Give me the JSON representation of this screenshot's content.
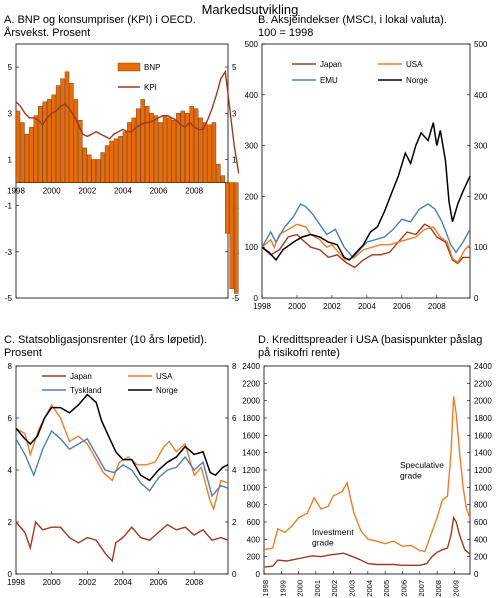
{
  "figure_title": "Markedsutvikling",
  "chart_data": [
    {
      "id": "A",
      "type": "bar",
      "title": "A. BNP og konsumpriser (KPI) i OECD.\nÅrsvekst. Prosent",
      "xlabel": "",
      "ylabel": "",
      "ylim": [
        -5,
        6
      ],
      "yticks_left": [
        "5",
        "3",
        "1",
        "-1",
        "-3",
        "-5"
      ],
      "yticks_right": [
        "5",
        "3",
        "1",
        "-1",
        "-3",
        "-5"
      ],
      "xticks": [
        "1998",
        "2000",
        "2002",
        "2004",
        "2006",
        "2008"
      ],
      "legend": [
        "BNP",
        "KPI"
      ],
      "colors": {
        "bnp": "#e46c0a",
        "kpi": "#a0391c",
        "bar_edge": "#7a2e00"
      },
      "series": [
        {
          "name": "BNP",
          "kind": "bar",
          "x_start": 1998.0,
          "step": 0.25,
          "values": [
            3.1,
            2.6,
            2.1,
            2.4,
            2.9,
            3.3,
            3.5,
            3.6,
            3.8,
            4.2,
            4.5,
            4.8,
            4.3,
            3.6,
            2.7,
            1.5,
            1.2,
            1.0,
            1.0,
            1.3,
            1.6,
            1.8,
            1.9,
            2.0,
            2.2,
            2.6,
            2.8,
            3.2,
            3.6,
            3.3,
            3.0,
            2.9,
            2.6,
            2.9,
            2.8,
            2.7,
            3.0,
            3.1,
            3.0,
            3.3,
            3.2,
            2.8,
            2.6,
            2.5,
            2.6,
            0.8,
            0.3,
            -2.2,
            -4.6,
            -4.8
          ]
        },
        {
          "name": "KPI",
          "kind": "line",
          "x_start": 1998.0,
          "step": 0.25,
          "values": [
            3.5,
            3.3,
            3.0,
            2.8,
            2.8,
            2.7,
            2.5,
            2.8,
            3.0,
            3.1,
            3.3,
            3.4,
            3.2,
            2.9,
            2.5,
            2.1,
            2.0,
            2.1,
            2.2,
            2.1,
            2.0,
            1.9,
            2.1,
            2.2,
            2.3,
            2.2,
            2.2,
            2.4,
            2.5,
            2.6,
            2.6,
            2.7,
            2.8,
            2.9,
            2.9,
            2.8,
            2.7,
            2.5,
            2.4,
            2.6,
            2.4,
            2.3,
            2.3,
            2.7,
            3.2,
            3.8,
            4.5,
            4.8,
            3.2,
            1.6,
            0.4
          ]
        }
      ]
    },
    {
      "id": "B",
      "type": "line",
      "title": "B. Aksjeindekser (MSCI, i lokal valuta).\n100 = 1998",
      "xlabel": "",
      "ylabel": "",
      "ylim": [
        0,
        500
      ],
      "yticks": [
        "0",
        "100",
        "200",
        "300",
        "400",
        "500"
      ],
      "xticks": [
        "1998",
        "2000",
        "2002",
        "2004",
        "2006",
        "2008"
      ],
      "x_range": [
        1998,
        2009.9
      ],
      "legend": [
        "Japan",
        "USA",
        "EMU",
        "Norge"
      ],
      "series": [
        {
          "name": "Japan",
          "color": "#a0391c",
          "x": [
            1998,
            1998.5,
            1999,
            1999.5,
            2000,
            2000.3,
            2000.8,
            2001.3,
            2001.8,
            2002.3,
            2002.8,
            2003.3,
            2003.8,
            2004.3,
            2004.8,
            2005.3,
            2005.8,
            2006.3,
            2006.8,
            2007.3,
            2007.6,
            2008.0,
            2008.5,
            2008.9,
            2009.2,
            2009.5,
            2009.9
          ],
          "values": [
            100,
            85,
            95,
            120,
            125,
            115,
            100,
            95,
            80,
            85,
            70,
            60,
            75,
            85,
            85,
            90,
            110,
            130,
            125,
            145,
            140,
            120,
            110,
            75,
            68,
            80,
            80
          ]
        },
        {
          "name": "USA",
          "color": "#f07c28",
          "x": [
            1998,
            1998.5,
            1998.7,
            1999,
            1999.5,
            2000,
            2000.5,
            2000.8,
            2001.3,
            2001.7,
            2002,
            2002.5,
            2002.8,
            2003.3,
            2003.8,
            2004.3,
            2004.8,
            2005.3,
            2005.8,
            2006.3,
            2006.8,
            2007.3,
            2007.8,
            2008.2,
            2008.6,
            2008.9,
            2009.2,
            2009.6,
            2009.9
          ],
          "values": [
            100,
            115,
            100,
            125,
            135,
            145,
            140,
            125,
            115,
            100,
            105,
            85,
            75,
            80,
            95,
            100,
            105,
            105,
            110,
            115,
            120,
            135,
            140,
            120,
            110,
            78,
            70,
            95,
            105
          ]
        },
        {
          "name": "EMU",
          "color": "#4a7ebb",
          "x": [
            1998,
            1998.5,
            1998.8,
            1999.3,
            1999.8,
            2000.2,
            2000.5,
            2000.9,
            2001.3,
            2001.7,
            2002.2,
            2002.7,
            2003.2,
            2003.6,
            2004,
            2004.5,
            2005,
            2005.5,
            2006,
            2006.5,
            2007,
            2007.5,
            2007.9,
            2008.3,
            2008.8,
            2009.1,
            2009.5,
            2009.9
          ],
          "values": [
            100,
            130,
            110,
            140,
            160,
            185,
            180,
            165,
            145,
            125,
            135,
            100,
            80,
            95,
            110,
            115,
            120,
            135,
            155,
            150,
            175,
            185,
            175,
            150,
            105,
            90,
            110,
            135
          ]
        },
        {
          "name": "Norge",
          "color": "#000000",
          "x": [
            1998,
            1998.4,
            1998.8,
            1999.2,
            1999.8,
            2000.3,
            2000.8,
            2001.3,
            2001.8,
            2002.3,
            2002.7,
            2003.0,
            2003.4,
            2003.8,
            2004.2,
            2004.6,
            2005,
            2005.4,
            2005.8,
            2006.2,
            2006.5,
            2006.8,
            2007.1,
            2007.5,
            2007.8,
            2008.0,
            2008.2,
            2008.5,
            2008.7,
            2008.9,
            2009.2,
            2009.5,
            2009.9
          ],
          "values": [
            100,
            90,
            75,
            95,
            110,
            120,
            125,
            120,
            110,
            105,
            80,
            75,
            90,
            105,
            130,
            140,
            170,
            205,
            240,
            285,
            265,
            300,
            325,
            310,
            345,
            300,
            330,
            270,
            190,
            150,
            185,
            210,
            240
          ]
        }
      ]
    },
    {
      "id": "C",
      "type": "line",
      "title": "C. Statsobligasjonsrenter (10 års løpetid).\nProsent",
      "xlabel": "",
      "ylabel": "",
      "ylim": [
        0,
        8
      ],
      "yticks": [
        "0",
        "2",
        "4",
        "6",
        "8"
      ],
      "xticks": [
        "1998",
        "2000",
        "2002",
        "2004",
        "2006",
        "2008"
      ],
      "x_range": [
        1998,
        2009.9
      ],
      "legend": [
        "Japan",
        "USA",
        "Tyskland",
        "Norge"
      ],
      "series": [
        {
          "name": "Japan",
          "color": "#a0391c",
          "x": [
            1998,
            1998.5,
            1998.8,
            1999.1,
            1999.5,
            2000,
            2000.5,
            2001,
            2001.5,
            2002,
            2002.5,
            2003,
            2003.4,
            2003.6,
            2004,
            2004.5,
            2005,
            2005.5,
            2006,
            2006.5,
            2007,
            2007.5,
            2008,
            2008.5,
            2009,
            2009.5,
            2009.9
          ],
          "values": [
            2.0,
            1.6,
            1.0,
            2.0,
            1.7,
            1.8,
            1.8,
            1.4,
            1.2,
            1.4,
            1.3,
            0.8,
            0.5,
            1.2,
            1.4,
            1.8,
            1.4,
            1.3,
            1.6,
            1.9,
            1.7,
            1.8,
            1.5,
            1.7,
            1.3,
            1.4,
            1.3
          ]
        },
        {
          "name": "USA",
          "color": "#f07c28",
          "x": [
            1998,
            1998.5,
            1998.8,
            1999.3,
            2000,
            2000.5,
            2001,
            2001.5,
            2002,
            2002.5,
            2002.9,
            2003.4,
            2003.8,
            2004.3,
            2004.8,
            2005.3,
            2005.8,
            2006.3,
            2006.6,
            2007,
            2007.5,
            2008,
            2008.4,
            2008.9,
            2009.1,
            2009.5,
            2009.9
          ],
          "values": [
            5.6,
            5.4,
            4.6,
            5.6,
            6.5,
            6.0,
            5.1,
            5.3,
            5.0,
            4.4,
            3.9,
            3.6,
            4.3,
            4.5,
            4.2,
            4.2,
            4.3,
            4.9,
            5.1,
            4.7,
            5.0,
            3.8,
            4.1,
            2.8,
            2.5,
            3.6,
            3.5
          ]
        },
        {
          "name": "Tyskland",
          "color": "#4a7ebb",
          "x": [
            1998,
            1998.5,
            1999,
            1999.5,
            2000,
            2000.5,
            2001,
            2001.5,
            2002,
            2002.5,
            2003,
            2003.5,
            2004,
            2004.5,
            2005,
            2005.5,
            2006,
            2006.5,
            2007,
            2007.5,
            2008,
            2008.5,
            2009,
            2009.5,
            2009.9
          ],
          "values": [
            5.2,
            4.6,
            3.8,
            4.8,
            5.5,
            5.2,
            4.8,
            5.0,
            5.2,
            4.6,
            4.0,
            3.9,
            4.2,
            4.0,
            3.5,
            3.2,
            3.7,
            4.0,
            4.1,
            4.5,
            4.0,
            4.3,
            3.0,
            3.4,
            3.3
          ]
        },
        {
          "name": "Norge",
          "color": "#000000",
          "x": [
            1998,
            1998.5,
            1998.8,
            1999.2,
            1999.6,
            2000,
            2000.5,
            2001,
            2001.5,
            2002,
            2002.5,
            2002.8,
            2003.2,
            2003.6,
            2004,
            2004.5,
            2005,
            2005.5,
            2006,
            2006.5,
            2007,
            2007.5,
            2008,
            2008.5,
            2008.9,
            2009.2,
            2009.6,
            2009.9
          ],
          "values": [
            5.6,
            5.2,
            5.0,
            5.3,
            6.0,
            6.4,
            6.4,
            6.2,
            6.5,
            6.9,
            6.6,
            5.9,
            5.3,
            4.7,
            4.4,
            4.4,
            3.8,
            3.6,
            4.0,
            4.3,
            4.5,
            4.9,
            4.6,
            4.7,
            3.9,
            3.8,
            4.1,
            4.2
          ]
        }
      ]
    },
    {
      "id": "D",
      "type": "line",
      "title": "D. Kredittspreader i USA (basispunkter påslag\npå risikofri rente)",
      "xlabel": "",
      "ylabel": "",
      "ylim": [
        0,
        2400
      ],
      "yticks": [
        "0",
        "200",
        "400",
        "600",
        "800",
        "1000",
        "1200",
        "1400",
        "1600",
        "1800",
        "2000",
        "2200",
        "2400"
      ],
      "xticks": [
        "1998",
        "1999",
        "2000",
        "2001",
        "2002",
        "2003",
        "2004",
        "2005",
        "2006",
        "2007",
        "2008",
        "2009"
      ],
      "x_range": [
        1998,
        2009.9
      ],
      "annotations": [
        "Speculative\ngrade",
        "Investment\ngrade"
      ],
      "series": [
        {
          "name": "Speculative grade",
          "color": "#f07c28",
          "x": [
            1998,
            1998.5,
            1998.8,
            1999.2,
            1999.6,
            2000,
            2000.5,
            2000.9,
            2001.3,
            2001.7,
            2002,
            2002.5,
            2002.8,
            2003.2,
            2003.6,
            2004,
            2004.5,
            2005,
            2005.5,
            2006,
            2006.5,
            2007,
            2007.3,
            2007.6,
            2008,
            2008.3,
            2008.6,
            2008.8,
            2008.95,
            2009.1,
            2009.3,
            2009.5,
            2009.7,
            2009.9
          ],
          "values": [
            280,
            300,
            520,
            480,
            550,
            650,
            700,
            880,
            750,
            780,
            900,
            950,
            1050,
            700,
            500,
            400,
            380,
            350,
            380,
            320,
            330,
            270,
            260,
            430,
            650,
            850,
            900,
            1400,
            2050,
            1850,
            1400,
            1000,
            750,
            650
          ]
        },
        {
          "name": "Investment grade",
          "color": "#a0391c",
          "x": [
            1998,
            1998.5,
            1998.8,
            1999.3,
            1999.8,
            2000.3,
            2000.8,
            2001.3,
            2001.8,
            2002.2,
            2002.6,
            2003,
            2003.5,
            2004,
            2004.5,
            2005,
            2005.5,
            2006,
            2006.5,
            2007,
            2007.4,
            2007.7,
            2008,
            2008.3,
            2008.6,
            2008.8,
            2008.95,
            2009.1,
            2009.3,
            2009.6,
            2009.9
          ],
          "values": [
            80,
            90,
            160,
            150,
            170,
            190,
            210,
            200,
            220,
            230,
            240,
            210,
            170,
            120,
            110,
            110,
            110,
            100,
            100,
            100,
            120,
            200,
            250,
            280,
            300,
            450,
            650,
            600,
            450,
            280,
            230
          ]
        }
      ]
    }
  ]
}
